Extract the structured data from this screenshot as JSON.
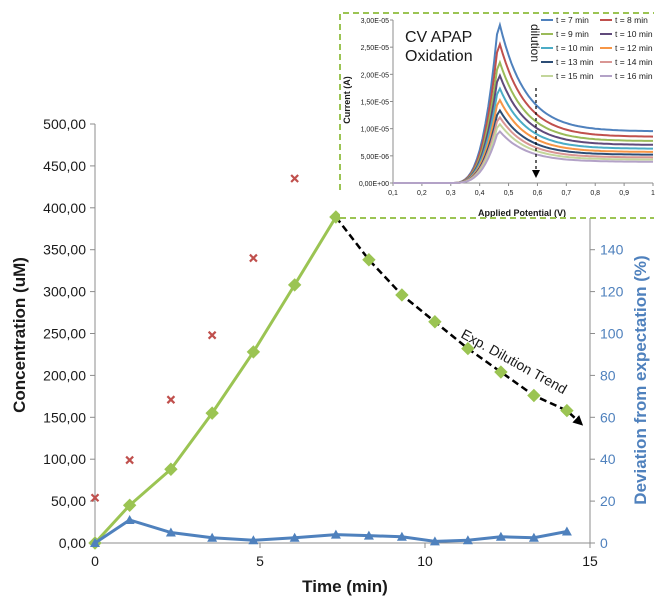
{
  "chart_data": [
    {
      "type": "line",
      "xlabel": "Time (min)",
      "ylabel": "Concentration (uM)",
      "y2label": "Deviation from expectation (%)",
      "xlim": [
        0,
        15
      ],
      "ylim": [
        0,
        500
      ],
      "y2lim": [
        0,
        200
      ],
      "x_ticks": [
        "0",
        "5",
        "10",
        "15"
      ],
      "y_ticks": [
        "0,00",
        "50,00",
        "100,00",
        "150,00",
        "200,00",
        "250,00",
        "300,00",
        "350,00",
        "400,00",
        "450,00",
        "500,00"
      ],
      "y2_ticks": [
        "0",
        "20",
        "40",
        "60",
        "80",
        "100",
        "120",
        "140"
      ],
      "grid": false,
      "annotation": "Exp. Dilution Trend",
      "colors": {
        "measured": "#9bc453",
        "expected": "#c0504d",
        "deviation": "#4f81bd",
        "trend": "#000000",
        "axis_label_right": "#4f81bd"
      },
      "series": [
        {
          "type": "scatter",
          "marker": "x",
          "x": [
            0,
            1.05,
            2.3,
            3.55,
            4.8,
            6.05
          ],
          "values": [
            54,
            99,
            171,
            248,
            340,
            435
          ]
        },
        {
          "type": "line",
          "marker": "diamond",
          "x": [
            0,
            1.05,
            2.3,
            3.55,
            4.8,
            6.05,
            7.3
          ],
          "values": [
            0,
            45,
            88,
            155,
            228,
            308,
            389
          ]
        },
        {
          "type": "dashed-line",
          "marker": "diamond",
          "x": [
            7.3,
            8.3,
            9.3,
            10.3,
            11.3,
            12.3,
            13.3,
            14.3
          ],
          "values": [
            389,
            338,
            296,
            264,
            232,
            204,
            176,
            158
          ]
        },
        {
          "type": "line",
          "axis": "right",
          "marker": "triangle",
          "x": [
            0,
            1.05,
            2.3,
            3.55,
            4.8,
            6.05,
            7.3,
            8.3,
            9.3,
            10.3,
            11.3,
            12.3,
            13.3,
            14.3
          ],
          "values": [
            0,
            11,
            5,
            2.5,
            1.3,
            2.5,
            4,
            3.5,
            3,
            0.8,
            1.3,
            3,
            2.5,
            5.5
          ]
        }
      ]
    },
    {
      "type": "line",
      "title": "CV APAP Oxidation",
      "xlabel": "Applied Potential (V)",
      "ylabel": "Current (A)",
      "xlim": [
        0.1,
        1.0
      ],
      "ylim": [
        0,
        3e-05
      ],
      "x_ticks": [
        "0,1",
        "0,2",
        "0,3",
        "0,4",
        "0,5",
        "0,6",
        "0,7",
        "0,8",
        "0,9",
        "1"
      ],
      "y_ticks": [
        "0,00E+00",
        "5,00E-06",
        "1,00E-05",
        "1,50E-05",
        "2,00E-05",
        "2,50E-05",
        "3,00E-05"
      ],
      "annotation": "dilution",
      "border_color": "#9bc453",
      "series": [
        {
          "name": "t = 7 min",
          "color": "#4f81bd",
          "peak": 3.02e-05,
          "tail": 9.5e-06
        },
        {
          "name": "t = 8 min",
          "color": "#c0504d",
          "peak": 2.65e-05,
          "tail": 8.5e-06
        },
        {
          "name": "t = 9 min",
          "color": "#9bbb59",
          "peak": 2.3e-05,
          "tail": 7.7e-06
        },
        {
          "name": "t = 10 min",
          "color": "#604a7b",
          "peak": 2.05e-05,
          "tail": 7e-06
        },
        {
          "name": "t = 10 min",
          "color": "#4bacc6",
          "peak": 1.8e-05,
          "tail": 6.3e-06
        },
        {
          "name": "t = 12 min",
          "color": "#f79646",
          "peak": 1.58e-05,
          "tail": 5.7e-06
        },
        {
          "name": "t = 13 min",
          "color": "#2c4d75",
          "peak": 1.38e-05,
          "tail": 5.2e-06
        },
        {
          "name": "t = 14 min",
          "color": "#d99694",
          "peak": 1.25e-05,
          "tail": 4.7e-06
        },
        {
          "name": "t = 15 min",
          "color": "#c3d69b",
          "peak": 1.12e-05,
          "tail": 4.3e-06
        },
        {
          "name": "t = 16 min",
          "color": "#b3a2c7",
          "peak": 9.8e-06,
          "tail": 3.9e-06
        }
      ]
    }
  ]
}
